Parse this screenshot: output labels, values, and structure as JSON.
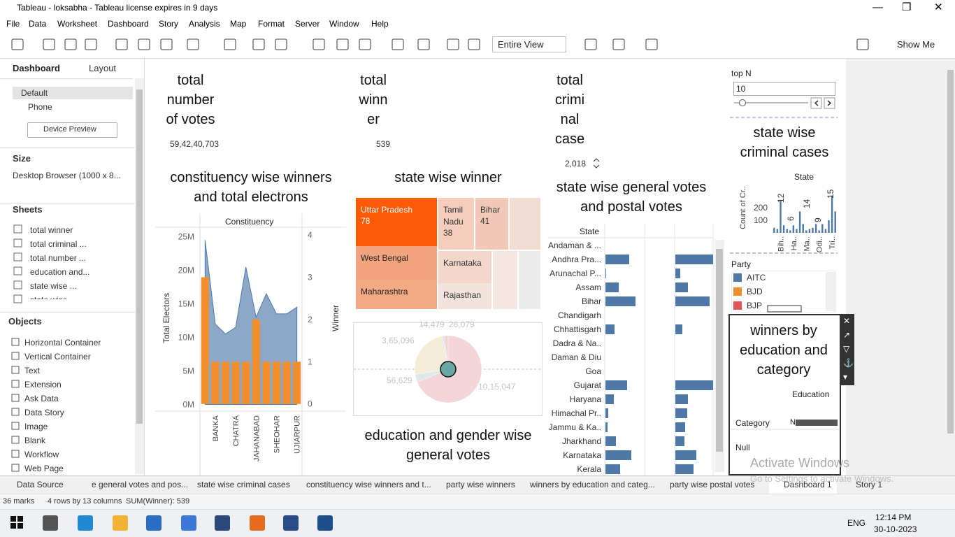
{
  "window": {
    "title": "Tableau - loksabha - Tableau license expires in 9 days"
  },
  "menu": [
    "File",
    "Data",
    "Worksheet",
    "Dashboard",
    "Story",
    "Analysis",
    "Map",
    "Format",
    "Server",
    "Window",
    "Help"
  ],
  "toolbar": {
    "view": "Entire View",
    "show_me": "Show Me"
  },
  "left_panel": {
    "tabs": [
      "Dashboard",
      "Layout"
    ],
    "devices": [
      "Default",
      "Phone"
    ],
    "device_preview": "Device Preview",
    "size_heading": "Size",
    "size": "Desktop Browser (1000 x 8...",
    "sheets_heading": "Sheets",
    "sheets": [
      "total winner",
      "total criminal ...",
      "total number ...",
      "education and...",
      "state wise ...",
      "state wise"
    ],
    "objects_heading": "Objects",
    "objects": [
      "Horizontal Container",
      "Vertical Container",
      "Text",
      "Extension",
      "Ask Data",
      "Data Story",
      "Image",
      "Blank",
      "Workflow",
      "Web Page"
    ]
  },
  "dashboard": {
    "kpis": [
      {
        "title": "total number of votes",
        "value": "59,42,40,703"
      },
      {
        "title": "total winner",
        "value": "539"
      },
      {
        "title": "total criminal case",
        "value": "2,018"
      }
    ],
    "constituency": {
      "type": "bar+area",
      "title": "constituency wise winners and total electrons",
      "header": "Constituency",
      "ylabel": "Total Electors",
      "y2label": "Winner",
      "categories": [
        null,
        "BANKA",
        null,
        "CHATRA",
        null,
        "JAHANABAD",
        null,
        "SHEOHAR",
        null,
        "UJIARPUR"
      ],
      "series": [
        {
          "color": "#4e79a7",
          "values": [
            24.5,
            12,
            10.5,
            11.5,
            20.5,
            13,
            16.5,
            13.5,
            13.5,
            14.5
          ]
        },
        {
          "color": "#f28e2b",
          "axis": "y2",
          "values": [
            3,
            1,
            1,
            1,
            1,
            2,
            1,
            1,
            1,
            1
          ]
        }
      ],
      "ylim": [
        -1,
        25.9
      ],
      "yticks": [
        {
          "value": 0,
          "label": "0M"
        },
        {
          "value": 5,
          "label": "5M"
        },
        {
          "value": 10,
          "label": "10M"
        },
        {
          "value": 15,
          "label": "15M"
        },
        {
          "value": 20,
          "label": "20M"
        },
        {
          "value": 25,
          "label": "25M"
        }
      ],
      "y2lim": [
        -0.17,
        4.1
      ],
      "y2ticks": [
        0,
        1,
        2,
        3,
        4
      ]
    },
    "treemap": {
      "title": "state wise winner",
      "cells": [
        {
          "label": "Uttar Pradesh",
          "value": 78
        },
        {
          "label": "Tamil Nadu",
          "value": 38
        },
        {
          "label": "Bihar",
          "value": 41
        },
        {
          "label": "West Bengal"
        },
        {
          "label": "Maharashtra"
        },
        {
          "label": "Karnataka"
        },
        {
          "label": "Rajasthan"
        }
      ]
    },
    "pie": {
      "type": "pie",
      "title": "education and gender wise general votes",
      "values": [
        1015047,
        56629,
        365096,
        14479,
        26079
      ],
      "value_labels": [
        "10,15,047",
        "56,629",
        "3,65,096",
        "14,479",
        "26,079"
      ],
      "colors": [
        "#f4d6da",
        "#dfe8e9",
        "#f3ecd6",
        "#dbe2ee",
        "#f1d4cf"
      ]
    },
    "state_votes": {
      "type": "bar",
      "title": "state wise general votes and postal votes",
      "header": "State",
      "color": "#4e79a7",
      "categories": [
        "Andaman & ...",
        "Andhra Pra...",
        "Arunachal P...",
        "Assam",
        "Bihar",
        "Chandigarh",
        "Chhattisgarh",
        "Dadra & Na..",
        "Daman & Diu",
        "Goa",
        "Gujarat",
        "Haryana",
        "Himachal Pr..",
        "Jammu & Ka..",
        "Jharkhand",
        "Karnataka",
        "Kerala"
      ],
      "general": [
        0,
        34,
        1,
        19,
        43,
        0,
        13,
        0,
        0,
        0,
        31,
        12,
        4,
        3,
        15,
        37,
        21
      ],
      "postal": [
        0,
        54,
        7,
        18,
        49,
        0,
        10,
        0,
        0,
        0,
        54,
        18,
        17,
        14,
        13,
        30,
        26
      ]
    },
    "criminal": {
      "type": "bar",
      "title": "state wise criminal cases",
      "header": "State",
      "ylabel": "Count of Cr..",
      "color": "#4e79a7",
      "categories": [
        null,
        null,
        "Bih..",
        null,
        null,
        null,
        "Ha..",
        null,
        null,
        null,
        "Ma..",
        null,
        null,
        null,
        "Odi..",
        null,
        null,
        null,
        "Tri..",
        null
      ],
      "values": [
        40,
        30,
        260,
        60,
        30,
        20,
        60,
        30,
        170,
        70,
        20,
        30,
        40,
        70,
        20,
        70,
        30,
        100,
        290,
        170
      ],
      "ylim": [
        0,
        350
      ],
      "yticks": [
        100,
        200
      ],
      "annotations": [
        "12",
        "6",
        "14",
        "9",
        "15"
      ]
    },
    "top_n": {
      "label": "top N",
      "value": 10
    },
    "party_legend": {
      "title": "Party",
      "items": [
        {
          "name": "AITC",
          "color": "#4e79a7"
        },
        {
          "name": "BJD",
          "color": "#f28e2b"
        },
        {
          "name": "BJP",
          "color": "#e15759"
        }
      ]
    },
    "education": {
      "title": "winners by education and category",
      "column_header": "Education",
      "row_header": "Category",
      "row": "Null",
      "cell": "N"
    }
  },
  "watermark": [
    "Activate Windows",
    "Go to Settings to activate Windows."
  ],
  "tabs": [
    "Data Source",
    "e general votes and pos...",
    "state wise criminal cases",
    "constituency wise winners and t...",
    "party wise winners",
    "winners by education and categ...",
    "party wise postal votes",
    "Dashboard 1",
    "Story 1"
  ],
  "status": [
    "36 marks",
    "4 rows by 13 columns",
    "SUM(Winner): 539"
  ],
  "taskbar": {
    "lang": "ENG",
    "time": "12:14 PM",
    "date": "30-10-2023"
  }
}
